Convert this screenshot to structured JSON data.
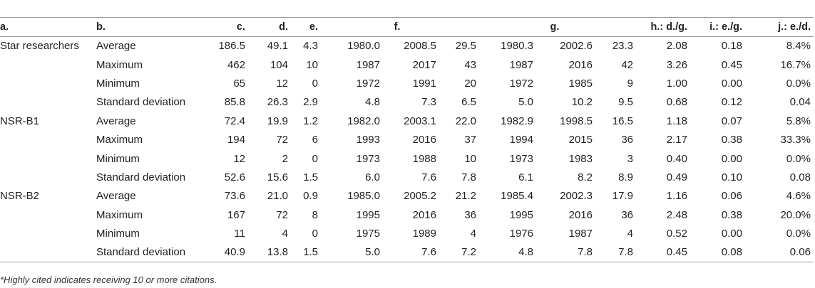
{
  "headers": {
    "a": "a.",
    "b": "b.",
    "c": "c.",
    "d": "d.",
    "e": "e.",
    "f": "f.",
    "g": "g.",
    "h": "h.: d./g.",
    "i": "i.: e./g.",
    "j": "j.: e./d."
  },
  "rows": [
    {
      "group": "Star researchers",
      "stat": "Average",
      "v": [
        "186.5",
        "49.1",
        "4.3",
        "1980.0",
        "2008.5",
        "29.5",
        "1980.3",
        "2002.6",
        "23.3",
        "2.08",
        "0.18",
        "8.4%"
      ]
    },
    {
      "group": "",
      "stat": "Maximum",
      "v": [
        "462",
        "104",
        "10",
        "1987",
        "2017",
        "43",
        "1987",
        "2016",
        "42",
        "3.26",
        "0.45",
        "16.7%"
      ]
    },
    {
      "group": "",
      "stat": "Minimum",
      "v": [
        "65",
        "12",
        "0",
        "1972",
        "1991",
        "20",
        "1972",
        "1985",
        "9",
        "1.00",
        "0.00",
        "0.0%"
      ]
    },
    {
      "group": "",
      "stat": "Standard deviation",
      "v": [
        "85.8",
        "26.3",
        "2.9",
        "4.8",
        "7.3",
        "6.5",
        "5.0",
        "10.2",
        "9.5",
        "0.68",
        "0.12",
        "0.04"
      ]
    },
    {
      "group": "NSR-B1",
      "stat": "Average",
      "v": [
        "72.4",
        "19.9",
        "1.2",
        "1982.0",
        "2003.1",
        "22.0",
        "1982.9",
        "1998.5",
        "16.5",
        "1.18",
        "0.07",
        "5.8%"
      ]
    },
    {
      "group": "",
      "stat": "Maximum",
      "v": [
        "194",
        "72",
        "6",
        "1993",
        "2016",
        "37",
        "1994",
        "2015",
        "36",
        "2.17",
        "0.38",
        "33.3%"
      ]
    },
    {
      "group": "",
      "stat": "Minimum",
      "v": [
        "12",
        "2",
        "0",
        "1973",
        "1988",
        "10",
        "1973",
        "1983",
        "3",
        "0.40",
        "0.00",
        "0.0%"
      ]
    },
    {
      "group": "",
      "stat": "Standard deviation",
      "v": [
        "52.6",
        "15.6",
        "1.5",
        "6.0",
        "7.6",
        "7.8",
        "6.1",
        "8.2",
        "8.9",
        "0.49",
        "0.10",
        "0.08"
      ]
    },
    {
      "group": "NSR-B2",
      "stat": "Average",
      "v": [
        "73.6",
        "21.0",
        "0.9",
        "1985.0",
        "2005.2",
        "21.2",
        "1985.4",
        "2002.3",
        "17.9",
        "1.16",
        "0.06",
        "4.6%"
      ]
    },
    {
      "group": "",
      "stat": "Maximum",
      "v": [
        "167",
        "72",
        "8",
        "1995",
        "2016",
        "36",
        "1995",
        "2016",
        "36",
        "2.48",
        "0.38",
        "20.0%"
      ]
    },
    {
      "group": "",
      "stat": "Minimum",
      "v": [
        "11",
        "4",
        "0",
        "1975",
        "1989",
        "4",
        "1976",
        "1987",
        "4",
        "0.52",
        "0.00",
        "0.0%"
      ]
    },
    {
      "group": "",
      "stat": "Standard deviation",
      "v": [
        "40.9",
        "13.8",
        "1.5",
        "5.0",
        "7.6",
        "7.2",
        "4.8",
        "7.8",
        "7.8",
        "0.45",
        "0.08",
        "0.06"
      ]
    }
  ],
  "footnote": "*Highly cited indicates receiving 10 or more citations."
}
